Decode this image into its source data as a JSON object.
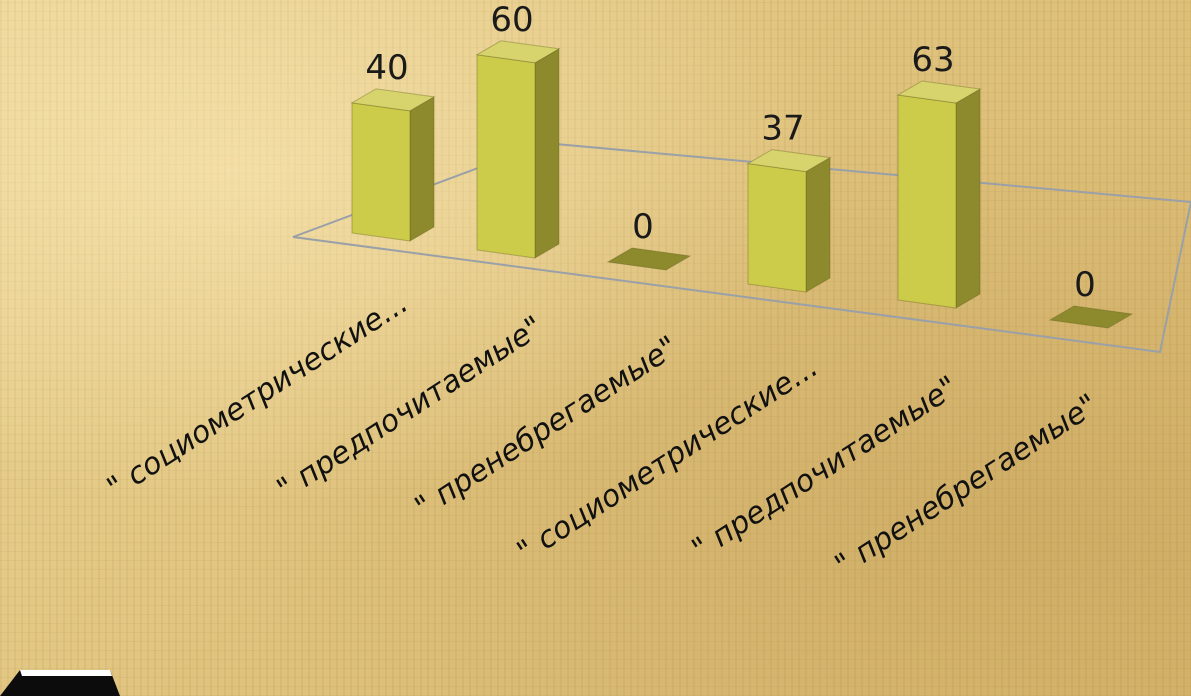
{
  "chart_data": {
    "type": "bar",
    "title": "",
    "xlabel": "",
    "ylabel": "",
    "categories": [
      "\" социометрические...",
      "\" предпочитаемые\"",
      "\" пренебрегаемые\"",
      "\" социометрические...",
      "\" предпочитаемые\"",
      "\" пренебрегаемые\""
    ],
    "values": [
      40,
      60,
      0,
      37,
      63,
      0
    ],
    "value_labels": [
      "40",
      "60",
      "0",
      "37",
      "63",
      "0"
    ],
    "ylim": [
      0,
      63
    ],
    "grid": false,
    "legend": "none",
    "colors": {
      "bar_front": "#cccb4a",
      "bar_side": "#8d8a2e",
      "bar_top": "#d7d46e",
      "floor_outline": "#9aa0a8"
    }
  }
}
